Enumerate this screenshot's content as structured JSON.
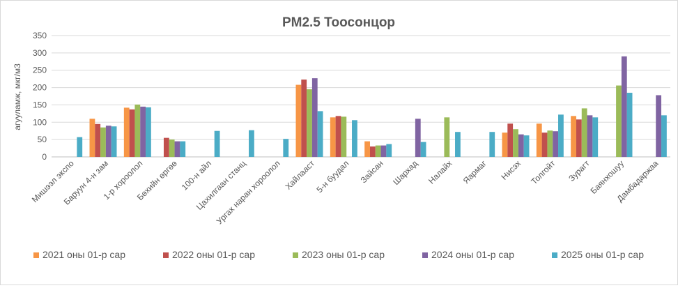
{
  "chart_data": {
    "type": "bar",
    "title": "PM2.5 Тоосонцор",
    "ylabel": "агууламж, мкг/м3",
    "xlabel": "",
    "ylim": [
      0,
      350
    ],
    "yticks": [
      0,
      50,
      100,
      150,
      200,
      250,
      300,
      350
    ],
    "grid": true,
    "legend_position": "bottom",
    "categories": [
      "Мишээл экспо",
      "Баруун 4-н зам",
      "1-р хороолол",
      "Бөхийн өргөө",
      "100-н айл",
      "Цахилгаан станц",
      "Ургах наран хороолол",
      "Хайлааст",
      "5-н буудал",
      "Зайсан",
      "Шархад",
      "Налайх",
      "Яармаг",
      "Нисэх",
      "Толгойт",
      "Зурагт",
      "Баянхошуу",
      "Дамбадаржаа"
    ],
    "series": [
      {
        "name": "2021 оны 01-р сар",
        "color": "#f79646",
        "values": [
          null,
          110,
          142,
          null,
          null,
          null,
          null,
          208,
          114,
          45,
          null,
          null,
          null,
          70,
          96,
          118,
          null,
          null
        ]
      },
      {
        "name": "2022 оны 01-р сар",
        "color": "#c0504d",
        "values": [
          null,
          95,
          137,
          55,
          null,
          null,
          null,
          223,
          118,
          30,
          null,
          null,
          null,
          96,
          70,
          108,
          null,
          null
        ]
      },
      {
        "name": "2023 оны 01-р сар",
        "color": "#9bbb59",
        "values": [
          null,
          85,
          151,
          50,
          null,
          null,
          null,
          195,
          116,
          33,
          null,
          114,
          null,
          80,
          76,
          140,
          206,
          null
        ]
      },
      {
        "name": "2024 оны 01-р сар",
        "color": "#8064a2",
        "values": [
          null,
          90,
          145,
          45,
          null,
          null,
          null,
          227,
          null,
          33,
          110,
          null,
          null,
          65,
          74,
          120,
          290,
          178
        ]
      },
      {
        "name": "2025 оны 01-р сар",
        "color": "#4bacc6",
        "values": [
          57,
          88,
          143,
          45,
          75,
          77,
          52,
          132,
          106,
          37,
          43,
          72,
          72,
          62,
          122,
          114,
          185,
          120
        ]
      }
    ]
  }
}
